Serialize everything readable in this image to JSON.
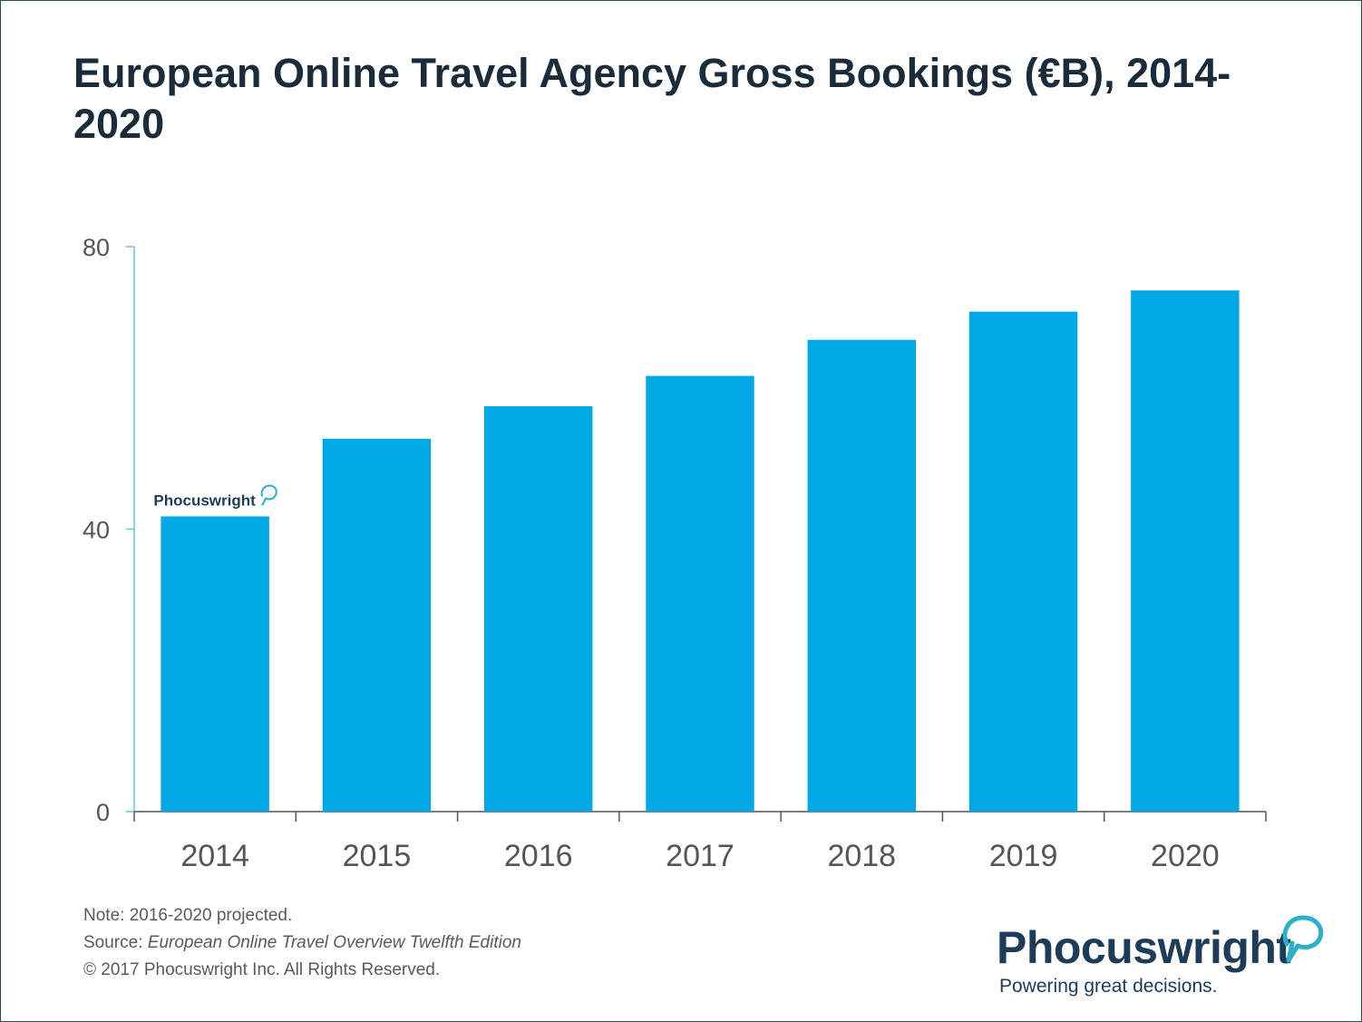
{
  "title": "European Online Travel Agency Gross Bookings (€B), 2014-2020",
  "chart_data": {
    "type": "bar",
    "categories": [
      "2014",
      "2015",
      "2016",
      "2017",
      "2018",
      "2019",
      "2020"
    ],
    "values": [
      41.8,
      52.8,
      57.4,
      61.7,
      66.8,
      70.8,
      73.8
    ],
    "ylim": [
      0,
      80
    ],
    "yticks": [
      0,
      40,
      80
    ],
    "xlabel": "",
    "ylabel": "",
    "grid": false,
    "colors": {
      "bar": "#00a9e6",
      "axis": "#5cc8f0"
    },
    "watermark": "Phocuswright"
  },
  "notes": {
    "note": "Note: 2016-2020 projected.",
    "source_label": "Source: ",
    "source_title": "European Online Travel Overview Twelfth Edition",
    "copyright": "© 2017 Phocuswright Inc. All Rights Reserved."
  },
  "brand": {
    "name": "Phocuswright",
    "tagline": "Powering great decisions.",
    "color": "#1c3c58",
    "accent": "#2ab0c9"
  }
}
